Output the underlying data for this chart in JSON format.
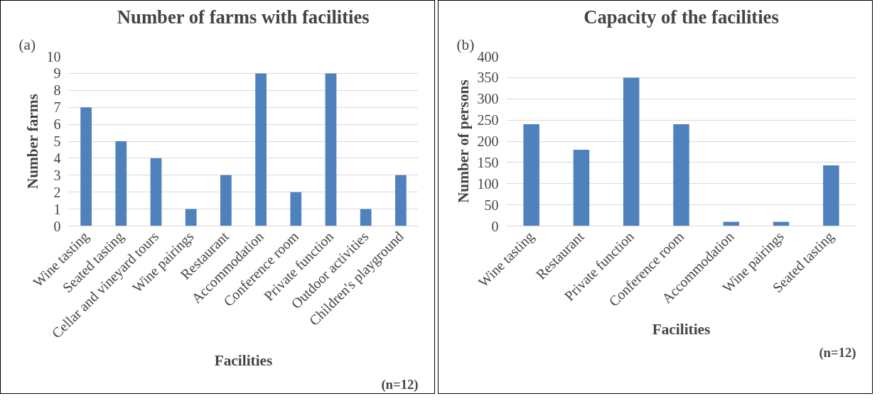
{
  "chart_data": [
    {
      "type": "bar",
      "title": "Number of farms with facilities",
      "xlabel": "Facilities",
      "ylabel": "Number farms",
      "categories": [
        "Wine tasting",
        "Seated tasting",
        "Cellar and vineyard tours",
        "Wine pairings",
        "Restaurant",
        "Accommodation",
        "Conference room",
        "Private function",
        "Outdoor activities",
        "Children's playground"
      ],
      "values": [
        7,
        5,
        4,
        1,
        3,
        9,
        2,
        9,
        1,
        3
      ],
      "color": "#4f81bd",
      "ylim": [
        0,
        10
      ],
      "yticks": [
        0,
        1,
        2,
        3,
        4,
        5,
        6,
        7,
        8,
        9,
        10
      ],
      "grid": "y",
      "annotations": [
        "(a)",
        "(n=12)"
      ]
    },
    {
      "type": "bar",
      "title": "Capacity of the facilities",
      "xlabel": "Facilities",
      "ylabel": "Number of persons",
      "categories": [
        "Wine tasting",
        "Restaurant",
        "Private function",
        "Conference room",
        "Accommodation",
        "Wine pairings",
        "Seated tasting"
      ],
      "values": [
        240,
        180,
        350,
        240,
        10,
        10,
        143
      ],
      "color": "#4f81bd",
      "ylim": [
        0,
        400
      ],
      "yticks": [
        0,
        50,
        100,
        150,
        200,
        250,
        300,
        350,
        400
      ],
      "grid": "y",
      "annotations": [
        "(b)",
        "(n=12)"
      ]
    }
  ]
}
